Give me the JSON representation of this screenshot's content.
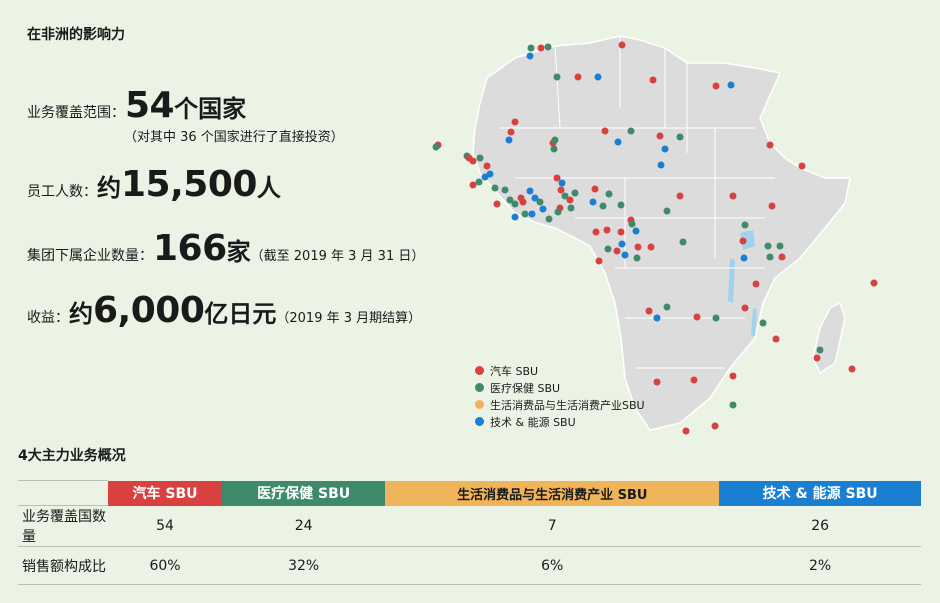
{
  "headings": {
    "influence": "在非洲的影响力",
    "business_overview": "4大主力业务概况"
  },
  "stats": {
    "coverage": {
      "label": "业务覆盖范围：",
      "value": "54",
      "unit": "个国家",
      "note": "（对其中 36 个国家进行了直接投资）"
    },
    "employees": {
      "label": "员工人数：",
      "prefix": "约",
      "value": "15,500",
      "unit": "人"
    },
    "companies": {
      "label": "集团下属企业数量：",
      "value": "166",
      "unit": "家",
      "note": "（截至 2019 年 3 月 31 日）"
    },
    "revenue": {
      "label": "收益：",
      "prefix": "约",
      "value": "6,000",
      "unit": "亿日元",
      "note": "（2019 年 3 月期结算）"
    }
  },
  "legend": [
    {
      "label": "汽车 SBU",
      "color": "#d94040"
    },
    {
      "label": "医疗保健 SBU",
      "color": "#3f8a6a"
    },
    {
      "label": "生活消费品与生活消费产业SBU",
      "color": "#f0b45a"
    },
    {
      "label": "技术 & 能源 SBU",
      "color": "#1b7fd1"
    }
  ],
  "table": {
    "columns": [
      {
        "label": "汽车 SBU",
        "color": "#d94040"
      },
      {
        "label": "医疗保健 SBU",
        "color": "#3f8a6a"
      },
      {
        "label": "生活消费品与生活消费产业 SBU",
        "color": "#f0b45a"
      },
      {
        "label": "技术 & 能源 SBU",
        "color": "#1b7fd1"
      }
    ],
    "rows": [
      {
        "label": "业务覆盖国数量",
        "values": [
          "54",
          "24",
          "7",
          "26"
        ]
      },
      {
        "label": "销售额构成比",
        "values": [
          "60%",
          "32%",
          "6%",
          "2%"
        ]
      }
    ]
  }
}
